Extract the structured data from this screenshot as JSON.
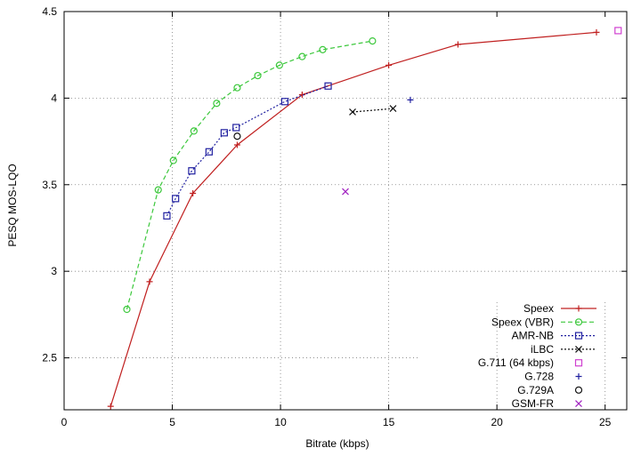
{
  "chart_data": {
    "type": "line",
    "xlabel": "Bitrate (kbps)",
    "ylabel": "PESQ MOS-LQO",
    "xlim": [
      0,
      26
    ],
    "ylim": [
      2.2,
      4.5
    ],
    "xticks": [
      "0",
      "5",
      "10",
      "15",
      "20",
      "25"
    ],
    "yticks": [
      "2.5",
      "3",
      "3.5",
      "4",
      "4.5"
    ],
    "grid": true,
    "legend": "bottom-right",
    "series": [
      {
        "name": "Speex",
        "color": "#c02020",
        "marker": "plus",
        "line": "solid",
        "x": [
          2.15,
          3.95,
          5.95,
          8.0,
          11.0,
          15.0,
          18.2,
          24.6
        ],
        "y": [
          2.22,
          2.94,
          3.45,
          3.73,
          4.02,
          4.19,
          4.31,
          4.38
        ]
      },
      {
        "name": "Speex (VBR)",
        "color": "#3cc83c",
        "marker": "circle",
        "line": "dashed",
        "x": [
          2.9,
          4.35,
          5.05,
          6.0,
          7.05,
          8.0,
          8.95,
          9.95,
          11.0,
          11.95,
          14.25
        ],
        "y": [
          2.78,
          3.47,
          3.64,
          3.81,
          3.97,
          4.06,
          4.13,
          4.19,
          4.24,
          4.28,
          4.33
        ]
      },
      {
        "name": "AMR-NB",
        "color": "#2020a0",
        "marker": "square",
        "line": "dotted",
        "x": [
          4.75,
          5.15,
          5.9,
          6.7,
          7.4,
          7.95,
          10.2,
          12.2
        ],
        "y": [
          3.32,
          3.42,
          3.58,
          3.69,
          3.8,
          3.83,
          3.98,
          4.07
        ]
      },
      {
        "name": "iLBC",
        "color": "#101010",
        "marker": "x",
        "line": "dotted",
        "x": [
          13.33,
          15.2
        ],
        "y": [
          3.92,
          3.94
        ]
      },
      {
        "name": "G.711 (64 kbps)",
        "color": "#d040d0",
        "marker": "square",
        "line": "none",
        "x": [
          25.6
        ],
        "y": [
          4.39
        ]
      },
      {
        "name": "G.728",
        "color": "#2020a0",
        "marker": "plus",
        "line": "none",
        "x": [
          16.0
        ],
        "y": [
          3.99
        ]
      },
      {
        "name": "G.729A",
        "color": "#101010",
        "marker": "circle",
        "line": "none",
        "x": [
          8.0
        ],
        "y": [
          3.78
        ]
      },
      {
        "name": "GSM-FR",
        "color": "#a020c0",
        "marker": "x",
        "line": "none",
        "x": [
          13.0
        ],
        "y": [
          3.46
        ]
      }
    ]
  }
}
